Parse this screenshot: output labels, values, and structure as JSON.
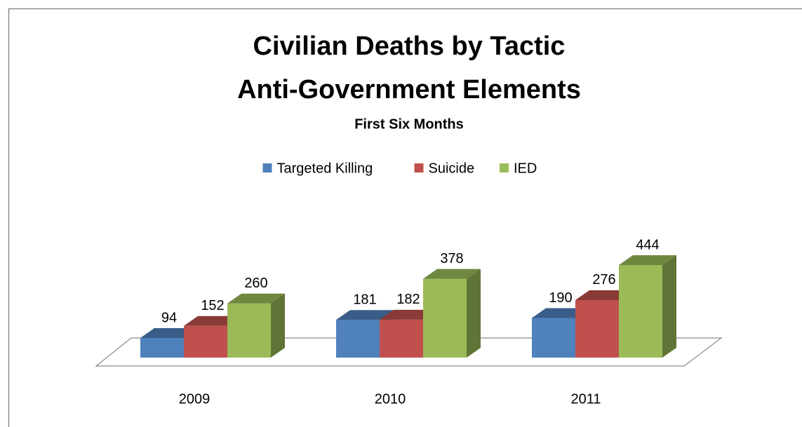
{
  "chart_data": {
    "type": "bar3d",
    "title": [
      "Civilian Deaths by Tactic",
      "Anti-Government Elements"
    ],
    "subtitle": "First Six Months",
    "categories": [
      "2009",
      "2010",
      "2011"
    ],
    "series": [
      {
        "name": "Targeted Killing",
        "color": "#4f81bd",
        "values": [
          94,
          181,
          190
        ]
      },
      {
        "name": "Suicide",
        "color": "#c0504d",
        "values": [
          152,
          182,
          276
        ]
      },
      {
        "name": "IED",
        "color": "#9bbb59",
        "values": [
          260,
          378,
          444
        ]
      }
    ],
    "legend": "top"
  }
}
